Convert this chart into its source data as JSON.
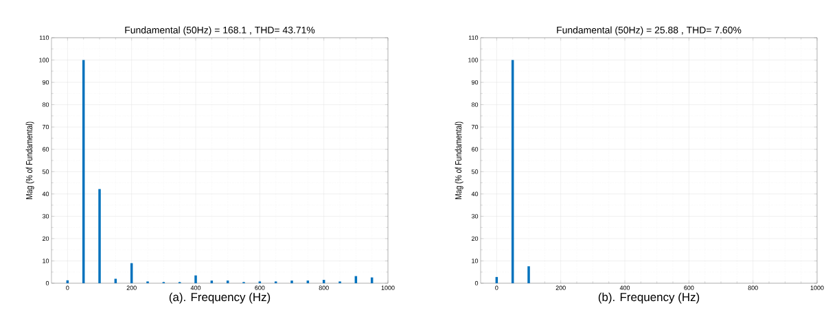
{
  "chart_data": [
    {
      "type": "bar",
      "title": "Fundamental (50Hz) = 168.1 , THD= 43.71%",
      "xlabel": "(a). Frequency (Hz)",
      "ylabel": "Mag (% of Fundamental)",
      "x": [
        0,
        50,
        100,
        150,
        200,
        250,
        300,
        350,
        400,
        450,
        500,
        550,
        600,
        650,
        700,
        750,
        800,
        850,
        900,
        950
      ],
      "values": [
        1.3,
        100,
        42.2,
        2,
        9,
        0.8,
        0.5,
        0.5,
        3.5,
        1.2,
        1.2,
        0.5,
        0.8,
        0.8,
        1.2,
        1.2,
        1.5,
        0.8,
        3.2,
        2.6
      ],
      "color": "#0072bd",
      "xlim": [
        -50,
        1000
      ],
      "ylim": [
        0,
        110
      ],
      "xticks": [
        0,
        200,
        400,
        600,
        800,
        1000
      ],
      "yticks": [
        0,
        10,
        20,
        30,
        40,
        50,
        60,
        70,
        80,
        90,
        100,
        110
      ],
      "grid": true
    },
    {
      "type": "bar",
      "title": "Fundamental (50Hz) = 25.88 , THD= 7.60%",
      "xlabel": "(b). Frequency (Hz)",
      "ylabel": "Mag (% of Fundamental)",
      "x": [
        0,
        50,
        100
      ],
      "values": [
        2.8,
        100,
        7.6
      ],
      "color": "#0072bd",
      "xlim": [
        -50,
        1000
      ],
      "ylim": [
        0,
        110
      ],
      "xticks": [
        0,
        200,
        400,
        600,
        800,
        1000
      ],
      "yticks": [
        0,
        10,
        20,
        30,
        40,
        50,
        60,
        70,
        80,
        90,
        100,
        110
      ],
      "grid": true
    }
  ]
}
